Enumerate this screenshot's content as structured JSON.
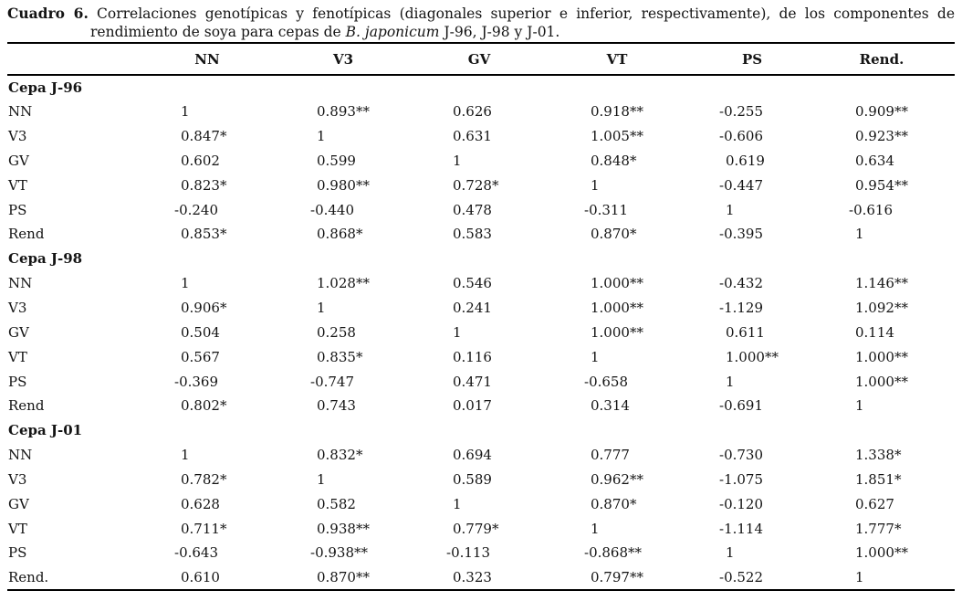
{
  "table": {
    "title": {
      "label": "Cuadro 6.",
      "line1": "Correlaciones genotípicas y fenotípicas (diagonales superior e inferior, respectivamente), de los componentes de",
      "line2_pre": "rendimiento de soya para cepas de ",
      "line2_italic": "B. japonicum",
      "line2_post": " J-96, J-98 y J-01."
    },
    "columns": [
      "NN",
      "V3",
      "GV",
      "VT",
      "PS",
      "Rend."
    ],
    "sections": [
      {
        "label": "Cepa J-96",
        "rows": [
          {
            "label": "NN",
            "values": [
              "1",
              "0.893**",
              "0.626",
              "0.918**",
              "-0.255",
              "0.909**"
            ]
          },
          {
            "label": "V3",
            "values": [
              "0.847*",
              "1",
              "0.631",
              "1.005**",
              "-0.606",
              "0.923**"
            ]
          },
          {
            "label": "GV",
            "values": [
              "0.602",
              "0.599",
              "1",
              "0.848*",
              "0.619",
              "0.634"
            ]
          },
          {
            "label": "VT",
            "values": [
              "0.823*",
              "0.980**",
              "0.728*",
              "1",
              "-0.447",
              "0.954**"
            ]
          },
          {
            "label": "PS",
            "values": [
              "-0.240",
              "-0.440",
              "0.478",
              "-0.311",
              "1",
              "-0.616"
            ]
          },
          {
            "label": "Rend",
            "values": [
              "0.853*",
              "0.868*",
              "0.583",
              "0.870*",
              "-0.395",
              "1"
            ]
          }
        ]
      },
      {
        "label": "Cepa J-98",
        "rows": [
          {
            "label": "NN",
            "values": [
              "1",
              "1.028**",
              "0.546",
              "1.000**",
              "-0.432",
              "1.146**"
            ]
          },
          {
            "label": "V3",
            "values": [
              "0.906*",
              "1",
              "0.241",
              "1.000**",
              "-1.129",
              "1.092**"
            ]
          },
          {
            "label": "GV",
            "values": [
              "0.504",
              "0.258",
              "1",
              "1.000**",
              "0.611",
              "0.114"
            ]
          },
          {
            "label": "VT",
            "values": [
              "0.567",
              "0.835*",
              "0.116",
              "1",
              "1.000**",
              "1.000**"
            ]
          },
          {
            "label": "PS",
            "values": [
              "-0.369",
              "-0.747",
              "0.471",
              "-0.658",
              "1",
              "1.000**"
            ]
          },
          {
            "label": "Rend",
            "values": [
              "0.802*",
              "0.743",
              "0.017",
              "0.314",
              "-0.691",
              "1"
            ]
          }
        ]
      },
      {
        "label": "Cepa J-01",
        "rows": [
          {
            "label": "NN",
            "values": [
              "1",
              "0.832*",
              "0.694",
              "0.777",
              "-0.730",
              "1.338*"
            ]
          },
          {
            "label": "V3",
            "values": [
              "0.782*",
              "1",
              "0.589",
              "0.962**",
              "-1.075",
              "1.851*"
            ]
          },
          {
            "label": "GV",
            "values": [
              "0.628",
              "0.582",
              "1",
              "0.870*",
              "-0.120",
              "0.627"
            ]
          },
          {
            "label": "VT",
            "values": [
              "0.711*",
              "0.938**",
              "0.779*",
              "1",
              "-1.114",
              "1.777*"
            ]
          },
          {
            "label": "PS",
            "values": [
              "-0.643",
              "-0.938**",
              "-0.113",
              "-0.868**",
              "1",
              "1.000**"
            ]
          },
          {
            "label": "Rend.",
            "values": [
              "0.610",
              "0.870**",
              "0.323",
              "0.797**",
              "-0.522",
              "1"
            ]
          }
        ]
      }
    ]
  }
}
